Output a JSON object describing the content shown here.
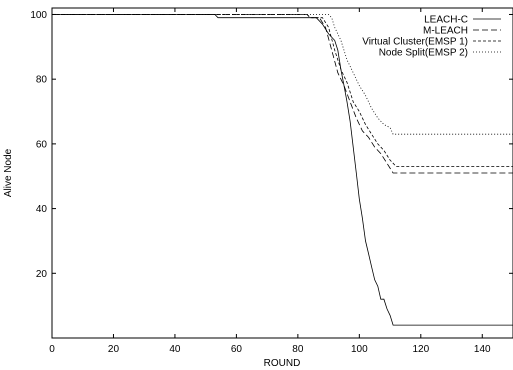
{
  "chart_data": {
    "type": "line",
    "title": "",
    "xlabel": "ROUND",
    "ylabel": "Alive Node",
    "xlim": [
      0,
      150
    ],
    "ylim": [
      0,
      102
    ],
    "xticks": [
      0,
      20,
      40,
      60,
      80,
      100,
      120,
      140
    ],
    "yticks": [
      20,
      40,
      60,
      80,
      100
    ],
    "legend_position": "top-right",
    "grid": false,
    "series": [
      {
        "name": "LEACH-C",
        "dash": "solid",
        "points": [
          [
            0,
            100
          ],
          [
            53,
            100
          ],
          [
            54,
            99
          ],
          [
            86,
            99
          ],
          [
            88,
            97
          ],
          [
            90,
            94
          ],
          [
            92,
            92
          ],
          [
            93,
            89
          ],
          [
            94,
            83
          ],
          [
            95,
            78
          ],
          [
            96,
            73
          ],
          [
            97,
            67
          ],
          [
            98,
            59
          ],
          [
            99,
            51
          ],
          [
            100,
            43
          ],
          [
            101,
            37
          ],
          [
            102,
            30
          ],
          [
            103,
            26
          ],
          [
            104,
            22
          ],
          [
            105,
            18
          ],
          [
            106,
            16
          ],
          [
            107,
            12
          ],
          [
            108,
            12
          ],
          [
            109,
            9
          ],
          [
            110,
            7
          ],
          [
            111,
            4
          ],
          [
            150,
            4
          ]
        ]
      },
      {
        "name": "M-LEACH",
        "dash": "6,3",
        "points": [
          [
            0,
            100
          ],
          [
            83,
            100
          ],
          [
            84,
            99
          ],
          [
            87,
            99
          ],
          [
            89,
            96
          ],
          [
            91,
            89
          ],
          [
            93,
            82
          ],
          [
            95,
            78
          ],
          [
            97,
            73
          ],
          [
            99,
            68
          ],
          [
            101,
            64
          ],
          [
            103,
            62
          ],
          [
            105,
            59
          ],
          [
            107,
            57
          ],
          [
            109,
            54
          ],
          [
            111,
            51
          ],
          [
            150,
            51
          ]
        ]
      },
      {
        "name": "Virtual Cluster(EMSP 1)",
        "dash": "3,2",
        "points": [
          [
            0,
            100
          ],
          [
            83,
            100
          ],
          [
            84,
            99
          ],
          [
            88,
            99
          ],
          [
            90,
            96
          ],
          [
            92,
            89
          ],
          [
            94,
            83
          ],
          [
            96,
            79
          ],
          [
            98,
            73
          ],
          [
            100,
            70
          ],
          [
            102,
            66
          ],
          [
            104,
            63
          ],
          [
            106,
            60
          ],
          [
            108,
            58
          ],
          [
            110,
            55
          ],
          [
            112,
            53
          ],
          [
            150,
            53
          ]
        ]
      },
      {
        "name": "Node Split(EMSP 2)",
        "dash": "1,2",
        "points": [
          [
            0,
            100
          ],
          [
            90,
            100
          ],
          [
            91,
            99
          ],
          [
            92,
            96
          ],
          [
            94,
            92
          ],
          [
            96,
            86
          ],
          [
            98,
            82
          ],
          [
            100,
            78
          ],
          [
            102,
            75
          ],
          [
            104,
            71
          ],
          [
            106,
            68
          ],
          [
            108,
            66
          ],
          [
            110,
            65
          ],
          [
            111,
            63
          ],
          [
            150,
            63
          ]
        ]
      }
    ]
  }
}
